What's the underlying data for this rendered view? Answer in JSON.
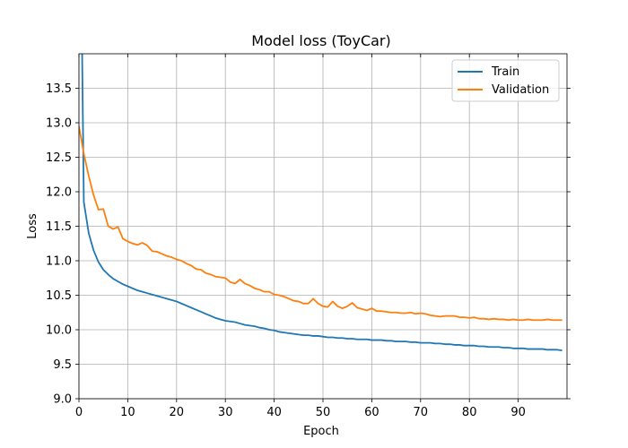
{
  "chart_data": {
    "type": "line",
    "title": "Model loss (ToyCar)",
    "xlabel": "Epoch",
    "ylabel": "Loss",
    "xlim": [
      0,
      100
    ],
    "ylim": [
      9.0,
      14.0
    ],
    "xticks": [
      0,
      10,
      20,
      30,
      40,
      50,
      60,
      70,
      80,
      90
    ],
    "yticks": [
      9.0,
      9.5,
      10.0,
      10.5,
      11.0,
      11.5,
      12.0,
      12.5,
      13.0,
      13.5
    ],
    "grid": true,
    "legend_position": "top-right",
    "series": [
      {
        "name": "Train",
        "color": "#1f77b4",
        "x": [
          0,
          1,
          2,
          3,
          4,
          5,
          6,
          7,
          8,
          9,
          10,
          11,
          12,
          13,
          14,
          15,
          16,
          17,
          18,
          19,
          20,
          21,
          22,
          23,
          24,
          25,
          26,
          27,
          28,
          29,
          30,
          31,
          32,
          33,
          34,
          35,
          36,
          37,
          38,
          39,
          40,
          41,
          42,
          43,
          44,
          45,
          46,
          47,
          48,
          49,
          50,
          51,
          52,
          53,
          54,
          55,
          56,
          57,
          58,
          59,
          60,
          61,
          62,
          63,
          64,
          65,
          66,
          67,
          68,
          69,
          70,
          71,
          72,
          73,
          74,
          75,
          76,
          77,
          78,
          79,
          80,
          81,
          82,
          83,
          84,
          85,
          86,
          87,
          88,
          89,
          90,
          91,
          92,
          93,
          94,
          95,
          96,
          97,
          98,
          99
        ],
        "values": [
          18.0,
          11.85,
          11.4,
          11.15,
          10.98,
          10.87,
          10.8,
          10.74,
          10.7,
          10.66,
          10.63,
          10.6,
          10.57,
          10.55,
          10.53,
          10.51,
          10.49,
          10.47,
          10.45,
          10.43,
          10.41,
          10.38,
          10.35,
          10.32,
          10.29,
          10.26,
          10.23,
          10.2,
          10.17,
          10.15,
          10.13,
          10.12,
          10.11,
          10.09,
          10.07,
          10.06,
          10.05,
          10.03,
          10.02,
          10.0,
          9.99,
          9.97,
          9.96,
          9.95,
          9.94,
          9.93,
          9.92,
          9.92,
          9.91,
          9.91,
          9.9,
          9.89,
          9.89,
          9.88,
          9.88,
          9.87,
          9.87,
          9.86,
          9.86,
          9.86,
          9.85,
          9.85,
          9.85,
          9.84,
          9.84,
          9.83,
          9.83,
          9.83,
          9.82,
          9.82,
          9.81,
          9.81,
          9.81,
          9.8,
          9.8,
          9.79,
          9.79,
          9.78,
          9.78,
          9.77,
          9.77,
          9.77,
          9.76,
          9.76,
          9.75,
          9.75,
          9.75,
          9.74,
          9.74,
          9.73,
          9.73,
          9.73,
          9.72,
          9.72,
          9.72,
          9.72,
          9.71,
          9.71,
          9.71,
          9.7
        ]
      },
      {
        "name": "Validation",
        "color": "#ff7f0e",
        "x": [
          0,
          1,
          2,
          3,
          4,
          5,
          6,
          7,
          8,
          9,
          10,
          11,
          12,
          13,
          14,
          15,
          16,
          17,
          18,
          19,
          20,
          21,
          22,
          23,
          24,
          25,
          26,
          27,
          28,
          29,
          30,
          31,
          32,
          33,
          34,
          35,
          36,
          37,
          38,
          39,
          40,
          41,
          42,
          43,
          44,
          45,
          46,
          47,
          48,
          49,
          50,
          51,
          52,
          53,
          54,
          55,
          56,
          57,
          58,
          59,
          60,
          61,
          62,
          63,
          64,
          65,
          66,
          67,
          68,
          69,
          70,
          71,
          72,
          73,
          74,
          75,
          76,
          77,
          78,
          79,
          80,
          81,
          82,
          83,
          84,
          85,
          86,
          87,
          88,
          89,
          90,
          91,
          92,
          93,
          94,
          95,
          96,
          97,
          98,
          99
        ],
        "values": [
          12.95,
          12.55,
          12.23,
          11.95,
          11.74,
          11.75,
          11.5,
          11.46,
          11.49,
          11.32,
          11.28,
          11.25,
          11.23,
          11.26,
          11.22,
          11.14,
          11.13,
          11.1,
          11.07,
          11.05,
          11.02,
          11.0,
          10.96,
          10.93,
          10.88,
          10.87,
          10.82,
          10.8,
          10.77,
          10.76,
          10.75,
          10.69,
          10.67,
          10.73,
          10.67,
          10.64,
          10.6,
          10.58,
          10.55,
          10.55,
          10.51,
          10.5,
          10.48,
          10.45,
          10.42,
          10.41,
          10.38,
          10.38,
          10.45,
          10.38,
          10.34,
          10.33,
          10.41,
          10.34,
          10.31,
          10.34,
          10.39,
          10.32,
          10.3,
          10.28,
          10.31,
          10.27,
          10.27,
          10.26,
          10.25,
          10.25,
          10.24,
          10.24,
          10.25,
          10.23,
          10.24,
          10.23,
          10.21,
          10.2,
          10.19,
          10.2,
          10.2,
          10.2,
          10.18,
          10.18,
          10.17,
          10.18,
          10.16,
          10.16,
          10.15,
          10.16,
          10.15,
          10.15,
          10.14,
          10.15,
          10.14,
          10.14,
          10.15,
          10.14,
          10.14,
          10.14,
          10.15,
          10.14,
          10.14,
          10.14
        ]
      }
    ]
  }
}
